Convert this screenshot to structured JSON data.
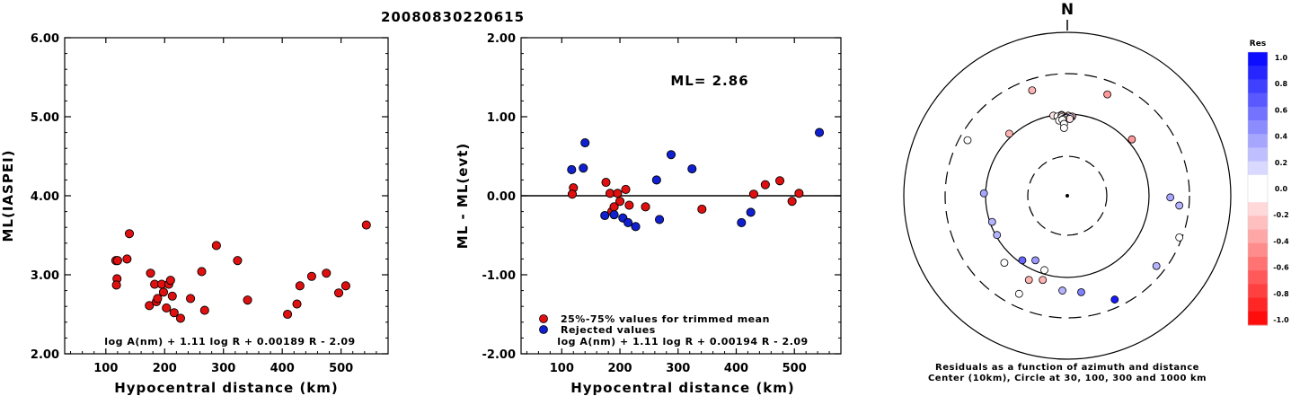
{
  "title": "20080830220615",
  "colors": {
    "red": "#e01010",
    "blue": "#1020d0",
    "black": "#000000"
  },
  "chart_data": [
    {
      "type": "scatter",
      "xlabel": "Hypocentral distance (km)",
      "ylabel": "ML(IASPEI)",
      "xlim": [
        30,
        580
      ],
      "ylim": [
        2.0,
        6.0
      ],
      "xticks": [
        "100",
        "200",
        "300",
        "400",
        "500"
      ],
      "yticks": [
        "2.00",
        "3.00",
        "4.00",
        "5.00",
        "6.00"
      ],
      "annotation": "log A(nm) + 1.11 log R + 0.00189 R - 2.09",
      "points": [
        [
          117,
          3.18
        ],
        [
          120,
          3.18
        ],
        [
          119,
          2.95
        ],
        [
          118,
          2.87
        ],
        [
          136,
          3.2
        ],
        [
          140,
          3.52
        ],
        [
          176,
          3.02
        ],
        [
          174,
          2.61
        ],
        [
          183,
          2.88
        ],
        [
          186,
          2.66
        ],
        [
          188,
          2.7
        ],
        [
          195,
          2.88
        ],
        [
          198,
          2.78
        ],
        [
          203,
          2.58
        ],
        [
          207,
          2.88
        ],
        [
          210,
          2.93
        ],
        [
          213,
          2.73
        ],
        [
          216,
          2.52
        ],
        [
          227,
          2.45
        ],
        [
          244,
          2.7
        ],
        [
          263,
          3.04
        ],
        [
          268,
          2.55
        ],
        [
          288,
          3.37
        ],
        [
          324,
          3.18
        ],
        [
          341,
          2.68
        ],
        [
          409,
          2.5
        ],
        [
          425,
          2.63
        ],
        [
          430,
          2.86
        ],
        [
          450,
          2.98
        ],
        [
          475,
          3.02
        ],
        [
          496,
          2.77
        ],
        [
          508,
          2.86
        ],
        [
          543,
          3.63
        ]
      ]
    },
    {
      "type": "scatter",
      "xlabel": "Hypocentral distance (km)",
      "ylabel": "ML - ML(evt)",
      "xlim": [
        30,
        580
      ],
      "ylim": [
        -2.0,
        2.0
      ],
      "xticks": [
        "100",
        "200",
        "300",
        "400",
        "500"
      ],
      "yticks": [
        "-2.00",
        "-1.00",
        "0.00",
        "1.00",
        "2.00"
      ],
      "ml_label": "ML= 2.86",
      "annotation": "log A(nm) + 1.11 log R + 0.00194 R - 2.09",
      "series": [
        {
          "name": "25%-75% values for trimmed mean",
          "color": "#e01010",
          "points": [
            [
              120,
              0.1
            ],
            [
              118,
              0.02
            ],
            [
              176,
              0.17
            ],
            [
              183,
              0.03
            ],
            [
              186,
              -0.2
            ],
            [
              190,
              -0.14
            ],
            [
              196,
              0.03
            ],
            [
              200,
              -0.07
            ],
            [
              210,
              0.08
            ],
            [
              216,
              -0.12
            ],
            [
              244,
              -0.14
            ],
            [
              341,
              -0.17
            ],
            [
              430,
              0.02
            ],
            [
              450,
              0.14
            ],
            [
              475,
              0.19
            ],
            [
              496,
              -0.07
            ],
            [
              508,
              0.03
            ]
          ]
        },
        {
          "name": "Rejected values",
          "color": "#1020d0",
          "points": [
            [
              117,
              0.33
            ],
            [
              137,
              0.35
            ],
            [
              140,
              0.67
            ],
            [
              174,
              -0.25
            ],
            [
              190,
              -0.24
            ],
            [
              205,
              -0.28
            ],
            [
              214,
              -0.34
            ],
            [
              227,
              -0.39
            ],
            [
              263,
              0.2
            ],
            [
              268,
              -0.3
            ],
            [
              288,
              0.52
            ],
            [
              324,
              0.34
            ],
            [
              409,
              -0.34
            ],
            [
              425,
              -0.21
            ],
            [
              543,
              0.8
            ]
          ]
        }
      ]
    },
    {
      "type": "scatter",
      "north_label": "N",
      "caption_line1": "Residuals as a function of azimuth and distance",
      "caption_line2": "Center (10km), Circle at 30, 100, 300 and 1000 km",
      "colorbar_title": "Res",
      "colorbar_ticks": [
        "1.0",
        "0.8",
        "0.6",
        "0.4",
        "0.2",
        "0.0",
        "-0.2",
        "-0.4",
        "-0.6",
        "-0.8",
        "-1.0"
      ],
      "points": [
        [
          -0.17,
          -0.98,
          -0.1
        ],
        [
          -0.07,
          -0.99,
          0.1
        ],
        [
          -0.12,
          -0.97,
          0.05
        ],
        [
          -0.07,
          -0.98,
          -0.14
        ],
        [
          0.01,
          -0.98,
          -0.24
        ],
        [
          -0.01,
          -0.96,
          -0.2
        ],
        [
          -0.07,
          -0.96,
          0.05
        ],
        [
          -0.02,
          -0.95,
          0.0
        ],
        [
          0.06,
          -0.97,
          -0.3
        ],
        [
          0.04,
          -0.96,
          0.2
        ],
        [
          0.03,
          -0.94,
          -0.1
        ],
        [
          -0.05,
          -0.94,
          0.0
        ],
        [
          -0.1,
          -0.92,
          0.0
        ],
        [
          -0.06,
          -0.93,
          0.0
        ],
        [
          -0.04,
          -0.88,
          0.0
        ],
        [
          -0.04,
          -0.83,
          0.0
        ],
        [
          -0.43,
          -1.29,
          -0.3
        ],
        [
          0.49,
          -1.24,
          -0.4
        ],
        [
          -0.71,
          -0.76,
          -0.3
        ],
        [
          -1.22,
          -0.68,
          0.0
        ],
        [
          0.79,
          -0.69,
          -0.4
        ],
        [
          -1.02,
          -0.03,
          0.35
        ],
        [
          1.26,
          0.02,
          0.35
        ],
        [
          1.37,
          0.12,
          0.3
        ],
        [
          -0.92,
          0.32,
          0.3
        ],
        [
          -0.86,
          0.48,
          0.3
        ],
        [
          1.37,
          0.51,
          0.0
        ],
        [
          -0.77,
          0.82,
          0.0
        ],
        [
          -0.55,
          0.79,
          0.6
        ],
        [
          -0.39,
          0.79,
          0.4
        ],
        [
          1.09,
          0.86,
          0.3
        ],
        [
          -0.28,
          0.91,
          0.0
        ],
        [
          -0.47,
          1.03,
          -0.3
        ],
        [
          -0.3,
          1.03,
          -0.3
        ],
        [
          -0.59,
          1.2,
          0.0
        ],
        [
          -0.06,
          1.16,
          0.3
        ],
        [
          0.17,
          1.18,
          0.5
        ],
        [
          0.58,
          1.27,
          0.9
        ]
      ]
    }
  ]
}
